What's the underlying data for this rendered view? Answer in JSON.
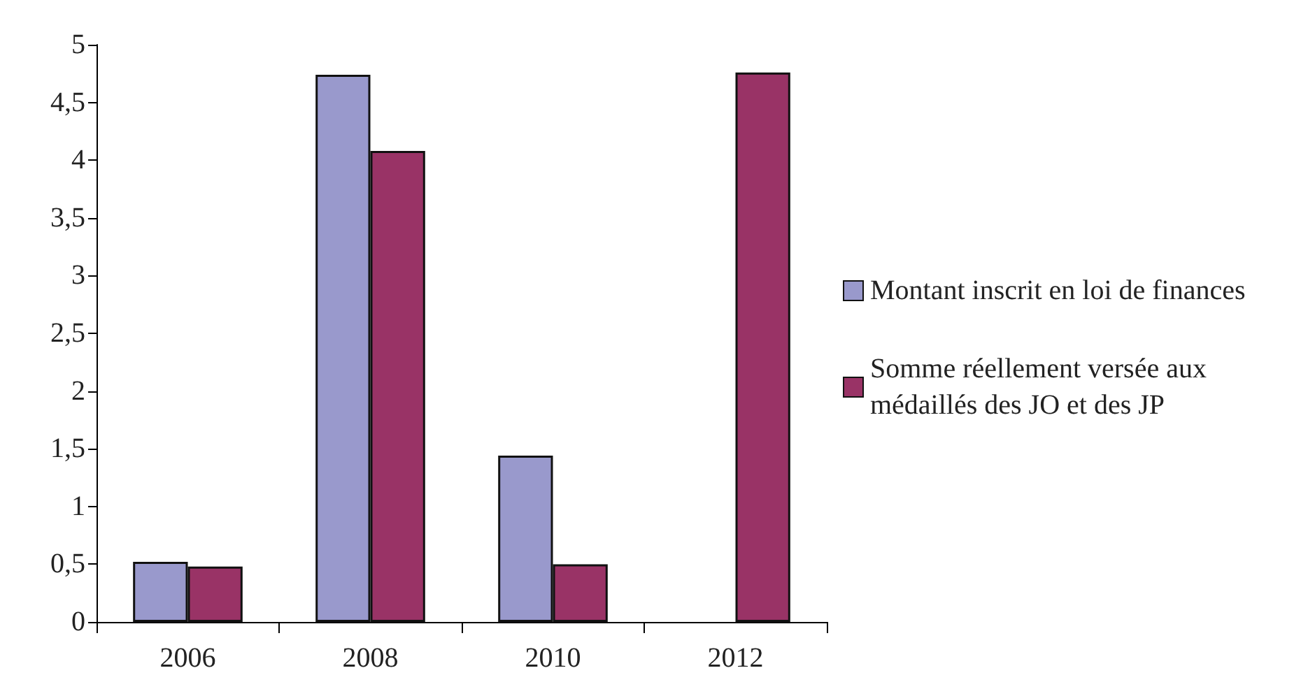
{
  "chart_data": {
    "type": "bar",
    "categories": [
      "2006",
      "2008",
      "2010",
      "2012"
    ],
    "series": [
      {
        "name": "Montant inscrit en loi de finances",
        "color": "#9999cc",
        "values": [
          0.52,
          4.74,
          1.44,
          null
        ]
      },
      {
        "name": "Somme réellement versée aux médaillés des JO et des JP",
        "color": "#993366",
        "values": [
          0.48,
          4.08,
          0.5,
          4.76
        ]
      }
    ],
    "ylim": [
      0,
      5
    ],
    "yticks": [
      0,
      {
        "value": 0.5,
        "label": "0,5"
      },
      1,
      {
        "value": 1.5,
        "label": "1,5"
      },
      2,
      {
        "value": 2.5,
        "label": "2,5"
      },
      3,
      {
        "value": 3.5,
        "label": "3,5"
      },
      4,
      {
        "value": 4.5,
        "label": "4,5"
      },
      5
    ],
    "grid": false,
    "legend": "right"
  }
}
